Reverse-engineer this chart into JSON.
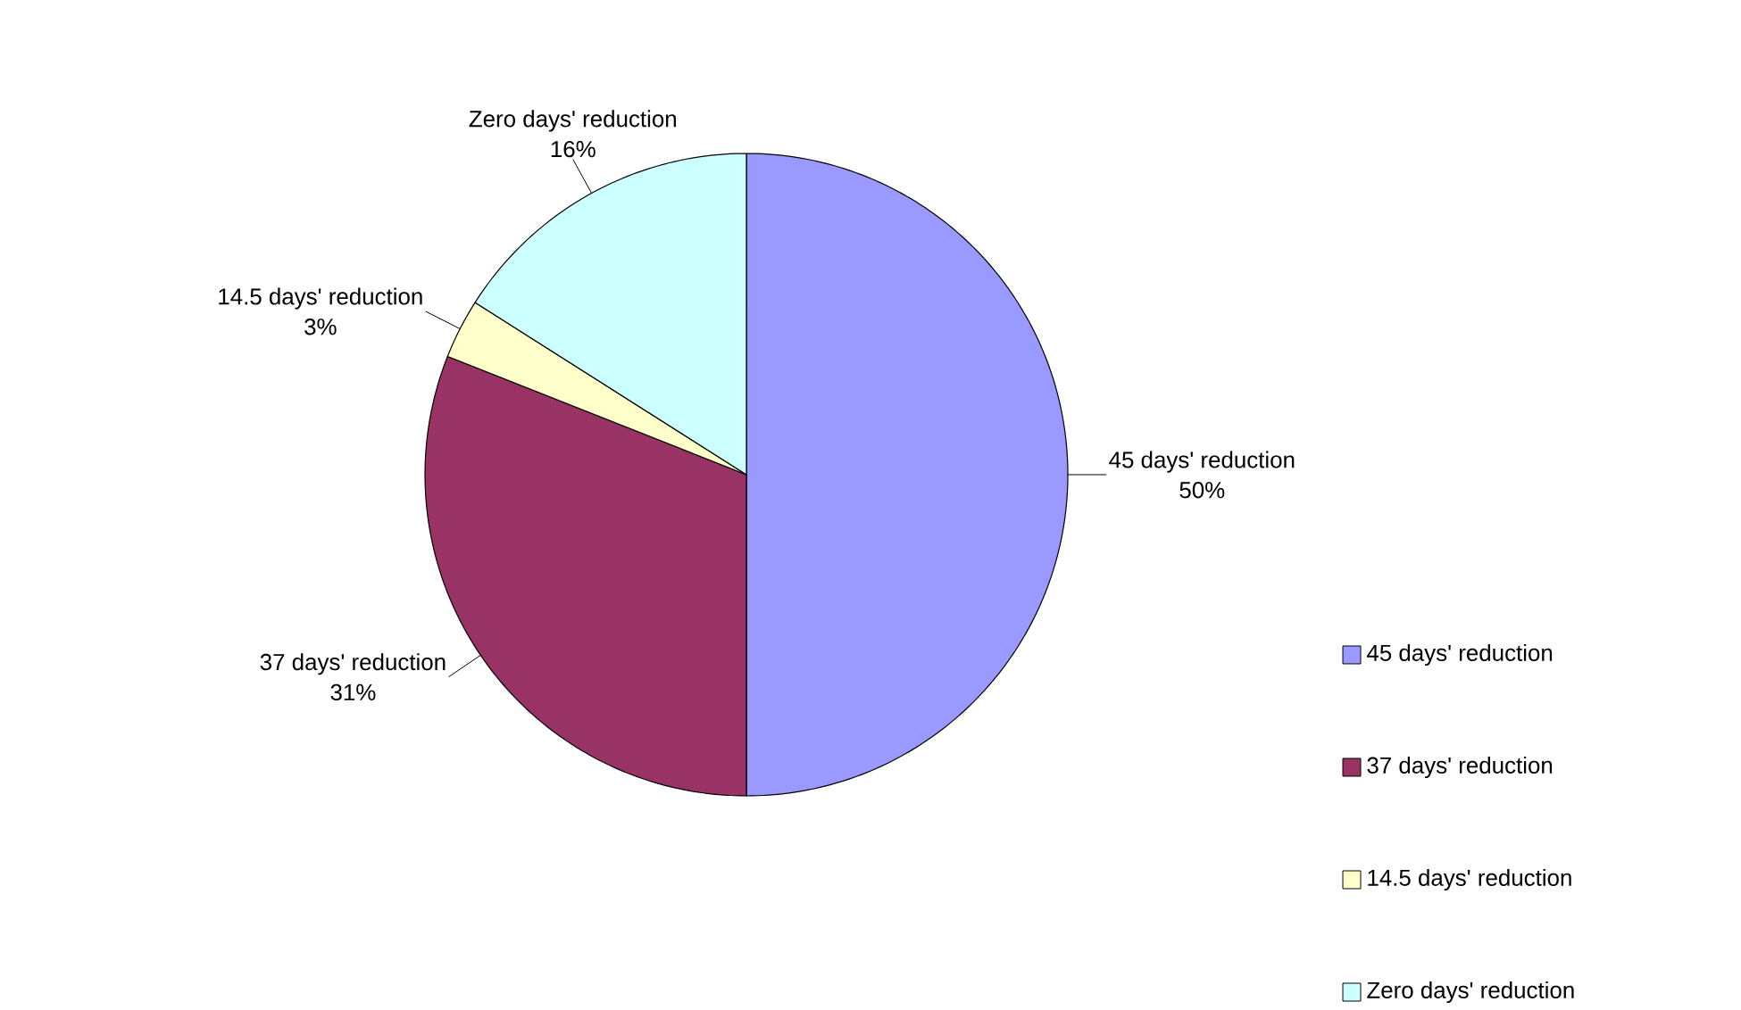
{
  "chart_data": {
    "type": "pie",
    "categories": [
      "45 days' reduction",
      "37 days' reduction",
      "14.5 days' reduction",
      "Zero days' reduction"
    ],
    "values": [
      50,
      31,
      3,
      16
    ],
    "value_labels": [
      "50%",
      "31%",
      "3%",
      "16%"
    ],
    "colors": [
      "#9999ff",
      "#993366",
      "#ffffcc",
      "#ccffff"
    ],
    "legend": "right"
  }
}
